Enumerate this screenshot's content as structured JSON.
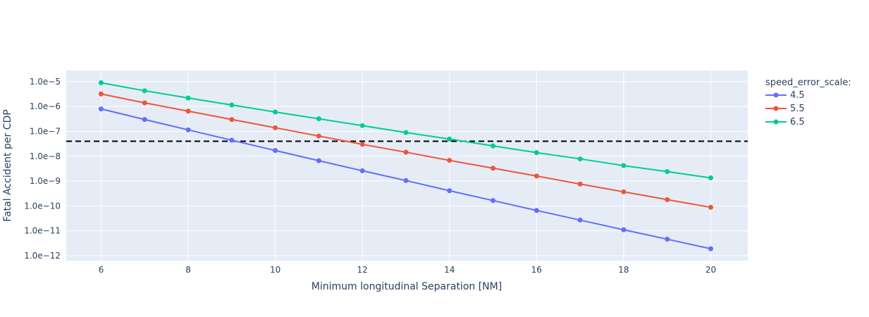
{
  "chart_data": {
    "type": "line",
    "xlabel": "Minimum longitudinal Separation [NM]",
    "ylabel": "Fatal Accident per CDP",
    "xlim": [
      5.2,
      20.85
    ],
    "ylim_log10": [
      -12.2,
      -4.55
    ],
    "y_scale": "log",
    "grid": true,
    "x_ticks": [
      6,
      8,
      10,
      12,
      14,
      16,
      18,
      20
    ],
    "x_tick_labels": [
      "6",
      "8",
      "10",
      "12",
      "14",
      "16",
      "18",
      "20"
    ],
    "y_ticks_log10": [
      -5,
      -6,
      -7,
      -8,
      -9,
      -10,
      -11,
      -12
    ],
    "y_tick_labels": [
      "1.0e−5",
      "1.0e−6",
      "1.0e−7",
      "1.0e−8",
      "1.0e−9",
      "1.0e−10",
      "1.0e−11",
      "1.0e−12"
    ],
    "threshold": {
      "value": 4e-08,
      "style": "dashed",
      "color": "#000000"
    },
    "legend": {
      "title": "speed_error_scale:",
      "placement": "top-right-outside"
    },
    "x": [
      6,
      7,
      8,
      9,
      10,
      11,
      12,
      13,
      14,
      15,
      16,
      17,
      18,
      19,
      20
    ],
    "series": [
      {
        "name": "4.5",
        "color": "#636efa",
        "values": [
          8e-07,
          3e-07,
          1.15e-07,
          4.4e-08,
          1.7e-08,
          6.6e-09,
          2.6e-09,
          1.05e-09,
          4.1e-10,
          1.65e-10,
          6.6e-11,
          2.7e-11,
          1.1e-11,
          4.6e-12,
          1.9e-12
        ]
      },
      {
        "name": "5.5",
        "color": "#ef553b",
        "values": [
          3.2e-06,
          1.4e-06,
          6.5e-07,
          3e-07,
          1.4e-07,
          6.5e-08,
          3e-08,
          1.45e-08,
          6.8e-09,
          3.3e-09,
          1.6e-09,
          7.6e-10,
          3.7e-10,
          1.8e-10,
          8.8e-11
        ]
      },
      {
        "name": "6.5",
        "color": "#00cc96",
        "values": [
          9e-06,
          4.3e-06,
          2.2e-06,
          1.15e-06,
          6e-07,
          3.2e-07,
          1.7e-07,
          9e-08,
          4.9e-08,
          2.6e-08,
          1.4e-08,
          7.8e-09,
          4.2e-09,
          2.4e-09,
          1.35e-09
        ]
      }
    ]
  }
}
